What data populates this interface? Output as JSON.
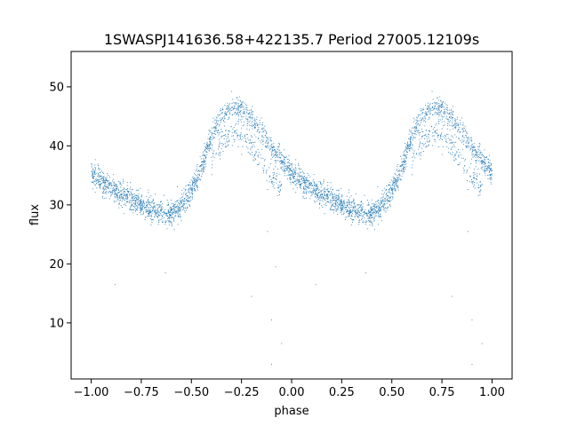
{
  "chart_data": {
    "type": "scatter",
    "title": "1SWASPJ141636.58+422135.7 Period 27005.12109s",
    "xlabel": "phase",
    "ylabel": "flux",
    "xlim": [
      -1.1,
      1.1
    ],
    "ylim": [
      0.5,
      56
    ],
    "grid": false,
    "legend": "none",
    "point_color": "#1f77b4",
    "xticks": [
      {
        "value": -1.0,
        "label": "−1.00"
      },
      {
        "value": -0.75,
        "label": "−0.75"
      },
      {
        "value": -0.5,
        "label": "−0.50"
      },
      {
        "value": -0.25,
        "label": "−0.25"
      },
      {
        "value": 0.0,
        "label": "0.00"
      },
      {
        "value": 0.25,
        "label": "0.25"
      },
      {
        "value": 0.5,
        "label": "0.50"
      },
      {
        "value": 0.75,
        "label": "0.75"
      },
      {
        "value": 1.0,
        "label": "1.00"
      }
    ],
    "yticks": [
      {
        "value": 10,
        "label": "10"
      },
      {
        "value": 20,
        "label": "20"
      },
      {
        "value": 30,
        "label": "30"
      },
      {
        "value": 40,
        "label": "40"
      },
      {
        "value": 50,
        "label": "50"
      }
    ],
    "light_curve": {
      "phase": [
        0.0,
        0.05,
        0.1,
        0.15,
        0.2,
        0.25,
        0.3,
        0.35,
        0.4,
        0.45,
        0.5,
        0.55,
        0.6,
        0.65,
        0.7,
        0.75,
        0.8,
        0.85,
        0.9,
        0.95,
        1.0
      ],
      "flux": [
        35.5,
        34.0,
        32.8,
        31.8,
        30.8,
        30.0,
        29.2,
        28.6,
        28.6,
        29.8,
        32.5,
        36.5,
        41.5,
        45.0,
        46.5,
        46.3,
        44.5,
        42.0,
        39.5,
        37.5,
        35.5
      ]
    },
    "outliers": [
      {
        "x": -0.88,
        "y": 16.5
      },
      {
        "x": -0.63,
        "y": 18.5
      },
      {
        "x": -0.2,
        "y": 14.5
      },
      {
        "x": -0.12,
        "y": 25.5
      },
      {
        "x": -0.08,
        "y": 19.5
      },
      {
        "x": -0.1,
        "y": 10.5
      },
      {
        "x": -0.05,
        "y": 6.5
      },
      {
        "x": -0.1,
        "y": 3.0
      },
      {
        "x": 0.12,
        "y": 16.5
      },
      {
        "x": 0.37,
        "y": 18.5
      },
      {
        "x": 0.8,
        "y": 14.5
      },
      {
        "x": 0.88,
        "y": 25.5
      },
      {
        "x": 0.9,
        "y": 10.5
      },
      {
        "x": 0.95,
        "y": 6.5
      },
      {
        "x": 0.9,
        "y": 3.0
      }
    ]
  }
}
